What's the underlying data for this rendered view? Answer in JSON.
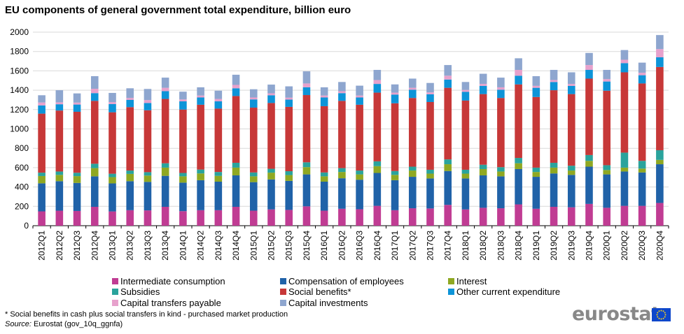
{
  "chart_data": {
    "type": "bar",
    "stacked": true,
    "title": "EU components of general government total expenditure, billion euro",
    "categories": [
      "2012Q1",
      "2012Q2",
      "2012Q3",
      "2012Q4",
      "2013Q1",
      "2013Q2",
      "2013Q3",
      "2013Q4",
      "2014Q1",
      "2014Q2",
      "2014Q3",
      "2014Q4",
      "2015Q1",
      "2015Q2",
      "2015Q3",
      "2015Q4",
      "2016Q1",
      "2016Q2",
      "2016Q3",
      "2016Q4",
      "2017Q1",
      "2017Q2",
      "2017Q3",
      "2017Q4",
      "2018Q1",
      "2018Q2",
      "2018Q3",
      "2018Q4",
      "2019Q1",
      "2019Q2",
      "2019Q3",
      "2019Q4",
      "2020Q1",
      "2020Q2",
      "2020Q3",
      "2020Q4"
    ],
    "ylim": [
      0,
      2000
    ],
    "yticks": [
      0,
      200,
      400,
      600,
      800,
      1000,
      1200,
      1400,
      1600,
      1800,
      2000
    ],
    "grid": true,
    "legend_position": "bottom",
    "series": [
      {
        "name": "Intermediate consumption",
        "color": "#c03c93",
        "values": [
          148,
          155,
          152,
          195,
          147,
          160,
          158,
          195,
          150,
          160,
          160,
          195,
          155,
          168,
          163,
          200,
          155,
          175,
          170,
          205,
          160,
          180,
          178,
          215,
          168,
          185,
          180,
          220,
          175,
          195,
          190,
          225,
          185,
          205,
          205,
          235
        ]
      },
      {
        "name": "Compensation of employees",
        "color": "#2062a8",
        "values": [
          290,
          305,
          290,
          315,
          290,
          300,
          295,
          320,
          295,
          310,
          295,
          325,
          295,
          310,
          300,
          330,
          300,
          315,
          305,
          340,
          310,
          325,
          310,
          350,
          320,
          335,
          330,
          365,
          330,
          345,
          335,
          385,
          345,
          355,
          345,
          400
        ]
      },
      {
        "name": "Interest",
        "color": "#8fa822",
        "values": [
          75,
          65,
          70,
          85,
          65,
          75,
          65,
          85,
          65,
          70,
          60,
          80,
          60,
          70,
          60,
          75,
          55,
          65,
          55,
          70,
          55,
          65,
          50,
          70,
          50,
          65,
          50,
          60,
          50,
          60,
          45,
          60,
          45,
          40,
          40,
          45
        ]
      },
      {
        "name": "Subsidies",
        "color": "#2aa39c",
        "values": [
          35,
          35,
          35,
          45,
          35,
          35,
          35,
          45,
          35,
          40,
          40,
          50,
          40,
          40,
          40,
          50,
          40,
          40,
          40,
          50,
          40,
          40,
          40,
          50,
          40,
          45,
          45,
          55,
          45,
          50,
          50,
          60,
          50,
          155,
          80,
          100
        ]
      },
      {
        "name": "Social benefits*",
        "color": "#c73838",
        "values": [
          610,
          630,
          630,
          650,
          635,
          655,
          640,
          665,
          655,
          670,
          655,
          690,
          670,
          680,
          665,
          695,
          685,
          695,
          680,
          710,
          700,
          710,
          700,
          740,
          715,
          730,
          715,
          760,
          730,
          750,
          740,
          790,
          770,
          830,
          800,
          860
        ]
      },
      {
        "name": "Other current expenditure",
        "color": "#0d94d8",
        "values": [
          85,
          65,
          75,
          80,
          85,
          75,
          75,
          80,
          85,
          75,
          75,
          80,
          85,
          80,
          75,
          80,
          90,
          80,
          75,
          90,
          90,
          85,
          80,
          85,
          90,
          85,
          85,
          90,
          95,
          85,
          85,
          90,
          95,
          95,
          85,
          100
        ]
      },
      {
        "name": "Capital transfers payable",
        "color": "#e7a1cc",
        "values": [
          30,
          20,
          20,
          45,
          20,
          20,
          30,
          35,
          20,
          20,
          25,
          35,
          20,
          20,
          20,
          40,
          20,
          20,
          20,
          40,
          20,
          20,
          20,
          40,
          20,
          20,
          25,
          60,
          20,
          20,
          20,
          50,
          25,
          35,
          25,
          85
        ]
      },
      {
        "name": "Capital investments",
        "color": "#8ea6cf",
        "values": [
          75,
          125,
          95,
          130,
          95,
          100,
          115,
          105,
          80,
          85,
          85,
          105,
          85,
          90,
          117,
          125,
          85,
          95,
          102,
          105,
          85,
          95,
          97,
          110,
          82,
          105,
          100,
          120,
          100,
          105,
          120,
          125,
          95,
          100,
          105,
          145
        ]
      }
    ]
  },
  "legend": [
    {
      "label": "Intermediate consumption",
      "color": "#c03c93"
    },
    {
      "label": "Compensation of employees",
      "color": "#2062a8"
    },
    {
      "label": "Interest",
      "color": "#8fa822"
    },
    {
      "label": "Subsidies",
      "color": "#2aa39c"
    },
    {
      "label": "Social benefits*",
      "color": "#c73838"
    },
    {
      "label": "Other current expenditure",
      "color": "#0d94d8"
    },
    {
      "label": "Capital transfers payable",
      "color": "#e7a1cc"
    },
    {
      "label": "Capital investments",
      "color": "#8ea6cf"
    }
  ],
  "footnote": "* Social benefits in cash plus social transfers in kind - purchased market production",
  "source": {
    "prefix": "Source:",
    "text": " Eurostat (gov_10q_ggnfa)"
  },
  "logo": {
    "text": "eurostat",
    "icon": "eu-flag-icon"
  }
}
